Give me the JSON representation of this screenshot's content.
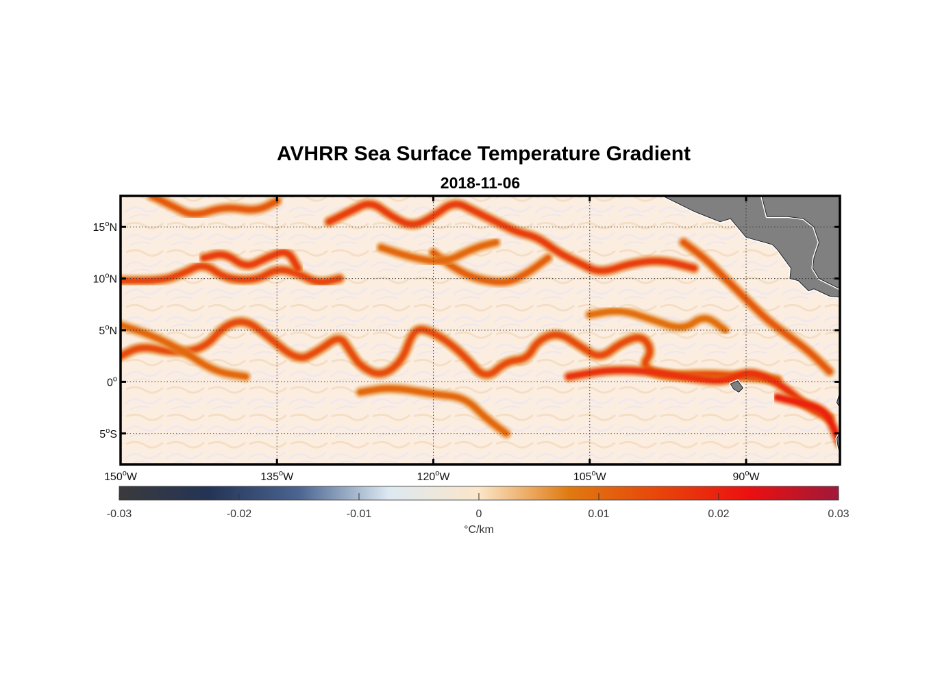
{
  "map": {
    "title": "AVHRR Sea Surface Temperature Gradient",
    "subtitle": "2018-11-06",
    "lon_range": [
      -150,
      -81
    ],
    "lat_range": [
      -8,
      18
    ],
    "lon_ticks": [
      {
        "value": -150,
        "deg": "150",
        "hem": "W"
      },
      {
        "value": -135,
        "deg": "135",
        "hem": "W"
      },
      {
        "value": -120,
        "deg": "120",
        "hem": "W"
      },
      {
        "value": -105,
        "deg": "105",
        "hem": "W"
      },
      {
        "value": -90,
        "deg": "90",
        "hem": "W"
      }
    ],
    "lat_ticks": [
      {
        "value": 15,
        "deg": "15",
        "hem": "N"
      },
      {
        "value": 10,
        "deg": "10",
        "hem": "N"
      },
      {
        "value": 5,
        "deg": "5",
        "hem": "N"
      },
      {
        "value": 0,
        "deg": "0",
        "hem": ""
      },
      {
        "value": -5,
        "deg": "5",
        "hem": "S"
      }
    ],
    "grid": true,
    "land_color": "#808080",
    "ocean_background": "#fbeee0"
  },
  "colorbar": {
    "min": -0.03,
    "max": 0.03,
    "tick_labels": [
      "-0.03",
      "-0.02",
      "-0.01",
      "0",
      "0.01",
      "0.02",
      "0.03"
    ],
    "tick_values": [
      -0.03,
      -0.02,
      -0.01,
      0,
      0.01,
      0.02,
      0.03
    ],
    "unit_label": "°C/km",
    "colors": [
      "#3a3a3c",
      "#243456",
      "#4a6590",
      "#dde9f2",
      "#fbe6c9",
      "#e07a10",
      "#e8450a",
      "#ec1010",
      "#a0183a"
    ]
  },
  "fronts": [
    {
      "name": "equatorial-front",
      "value": 0.014,
      "points": [
        [
          -150,
          2.5
        ],
        [
          -148,
          3.5
        ],
        [
          -145,
          2.8
        ],
        [
          -142,
          3.2
        ],
        [
          -140,
          5.5
        ],
        [
          -138,
          6.0
        ],
        [
          -136,
          4.5
        ],
        [
          -133,
          2.0
        ],
        [
          -131,
          3.0
        ],
        [
          -129,
          4.5
        ],
        [
          -128,
          3.0
        ],
        [
          -127,
          1.5
        ],
        [
          -125,
          0.5
        ],
        [
          -123,
          2.0
        ],
        [
          -122,
          4.8
        ],
        [
          -121,
          5.2
        ],
        [
          -119,
          4.2
        ],
        [
          -117,
          2.5
        ],
        [
          -115,
          0.2
        ],
        [
          -113,
          2.0
        ],
        [
          -111,
          2.2
        ],
        [
          -110,
          4.0
        ],
        [
          -108,
          4.8
        ],
        [
          -106,
          3.5
        ],
        [
          -104,
          2.2
        ],
        [
          -102,
          3.8
        ],
        [
          -100,
          4.5
        ],
        [
          -99,
          3.0
        ],
        [
          -100,
          1.5
        ],
        [
          -98,
          0.5
        ],
        [
          -94,
          0.8
        ],
        [
          -90,
          0.5
        ],
        [
          -87,
          0.2
        ]
      ]
    },
    {
      "name": "equator-east-front",
      "value": 0.018,
      "points": [
        [
          -107,
          0.5
        ],
        [
          -103,
          1.2
        ],
        [
          -99,
          1.0
        ],
        [
          -95,
          0.3
        ],
        [
          -92,
          0.0
        ],
        [
          -90,
          1.0
        ],
        [
          -88,
          0.5
        ],
        [
          -86,
          -0.8
        ],
        [
          -84,
          -2.5
        ],
        [
          -82,
          -3.5
        ]
      ]
    },
    {
      "name": "itcz-front",
      "value": 0.015,
      "points": [
        [
          -150,
          9.8
        ],
        [
          -146,
          9.8
        ],
        [
          -144,
          10.5
        ],
        [
          -142,
          11.5
        ],
        [
          -140,
          10.0
        ],
        [
          -137,
          9.8
        ],
        [
          -135,
          11.0
        ],
        [
          -133,
          10.5
        ],
        [
          -131,
          9.5
        ],
        [
          -129,
          10.0
        ]
      ]
    },
    {
      "name": "north-front-1",
      "value": 0.016,
      "points": [
        [
          -130,
          15.5
        ],
        [
          -128,
          16.5
        ],
        [
          -126,
          17.5
        ],
        [
          -124,
          16.0
        ],
        [
          -122,
          15.0
        ],
        [
          -120,
          16.0
        ],
        [
          -118,
          17.5
        ],
        [
          -116,
          16.5
        ],
        [
          -114,
          15.5
        ],
        [
          -112,
          14.5
        ],
        [
          -110,
          14.0
        ],
        [
          -108,
          12.5
        ],
        [
          -106,
          11.5
        ],
        [
          -104,
          10.5
        ],
        [
          -101,
          11.5
        ],
        [
          -98,
          11.8
        ],
        [
          -95,
          11.0
        ]
      ]
    },
    {
      "name": "north-front-2",
      "value": 0.016,
      "points": [
        [
          -142,
          12.0
        ],
        [
          -140,
          12.5
        ],
        [
          -138,
          11.0
        ],
        [
          -136,
          12.0
        ],
        [
          -134,
          12.8
        ],
        [
          -133,
          11.0
        ]
      ]
    },
    {
      "name": "north-front-3",
      "value": 0.012,
      "points": [
        [
          -147,
          18.0
        ],
        [
          -145,
          17.0
        ],
        [
          -143,
          16.0
        ],
        [
          -140,
          17.0
        ],
        [
          -137,
          16.5
        ],
        [
          -135,
          17.5
        ]
      ]
    },
    {
      "name": "south-front",
      "value": 0.01,
      "points": [
        [
          -127,
          -1.0
        ],
        [
          -124,
          -0.5
        ],
        [
          -120,
          -1.2
        ],
        [
          -117,
          -1.5
        ],
        [
          -115,
          -3.5
        ],
        [
          -113,
          -5.0
        ]
      ]
    },
    {
      "name": "central-front",
      "value": 0.011,
      "points": [
        [
          -120,
          12.5
        ],
        [
          -118,
          11.0
        ],
        [
          -116,
          10.0
        ],
        [
          -113,
          9.5
        ],
        [
          -111,
          10.5
        ],
        [
          -109,
          12.0
        ]
      ]
    },
    {
      "name": "east-north-front",
      "value": 0.012,
      "points": [
        [
          -96,
          13.5
        ],
        [
          -94,
          12.0
        ],
        [
          -92,
          10.0
        ],
        [
          -90,
          8.0
        ],
        [
          -88,
          6.0
        ],
        [
          -86,
          4.5
        ],
        [
          -84,
          3.0
        ],
        [
          -82,
          1.0
        ]
      ]
    },
    {
      "name": "se-front",
      "value": 0.02,
      "points": [
        [
          -87,
          -1.5
        ],
        [
          -85,
          -2.0
        ],
        [
          -83,
          -2.5
        ],
        [
          -82,
          -3.5
        ],
        [
          -81,
          -6.0
        ]
      ]
    },
    {
      "name": "west-mid-front",
      "value": 0.01,
      "points": [
        [
          -150,
          5.5
        ],
        [
          -147,
          4.5
        ],
        [
          -144,
          3.0
        ],
        [
          -141,
          1.0
        ],
        [
          -138,
          0.5
        ]
      ]
    },
    {
      "name": "mid-north-front",
      "value": 0.01,
      "points": [
        [
          -125,
          13.0
        ],
        [
          -122,
          12.0
        ],
        [
          -119,
          11.5
        ],
        [
          -116,
          13.0
        ],
        [
          -114,
          13.5
        ]
      ]
    },
    {
      "name": "lat7-front",
      "value": 0.009,
      "points": [
        [
          -105,
          6.5
        ],
        [
          -102,
          7.0
        ],
        [
          -99,
          6.0
        ],
        [
          -96,
          5.0
        ],
        [
          -94,
          6.5
        ],
        [
          -92,
          5.0
        ]
      ]
    }
  ],
  "land": [
    {
      "name": "central-america",
      "points": [
        [
          -98,
          18
        ],
        [
          -95,
          16.5
        ],
        [
          -92.5,
          15.5
        ],
        [
          -91.5,
          15.8
        ],
        [
          -90,
          14.0
        ],
        [
          -87.5,
          13.3
        ],
        [
          -87,
          12.8
        ],
        [
          -85.7,
          11.0
        ],
        [
          -85.8,
          10.0
        ],
        [
          -85,
          9.8
        ],
        [
          -84,
          8.8
        ],
        [
          -83.5,
          9.0
        ],
        [
          -82,
          8.3
        ],
        [
          -81,
          8.2
        ],
        [
          -81,
          18
        ]
      ]
    },
    {
      "name": "gulf-of-mexico-notch",
      "points": [
        [
          -88.5,
          18
        ],
        [
          -88,
          16.0
        ],
        [
          -86,
          16.0
        ],
        [
          -84.5,
          15.8
        ],
        [
          -83.5,
          15.0
        ],
        [
          -83,
          13.5
        ],
        [
          -83.5,
          12.0
        ],
        [
          -83.6,
          11.0
        ],
        [
          -83,
          10.0
        ],
        [
          -81,
          9.0
        ],
        [
          -81,
          18
        ]
      ]
    },
    {
      "name": "ecuador-peru",
      "points": [
        [
          -81,
          2.0
        ],
        [
          -80.5,
          1.0
        ],
        [
          -81,
          0.0
        ],
        [
          -81,
          -8
        ],
        [
          -81,
          -2.5
        ],
        [
          -81.3,
          -2.0
        ],
        [
          -81,
          -1.0
        ]
      ]
    },
    {
      "name": "peru-coast",
      "points": [
        [
          -81,
          -3.8
        ],
        [
          -80.8,
          -4.5
        ],
        [
          -81.3,
          -5.5
        ],
        [
          -81.2,
          -6.2
        ],
        [
          -81,
          -7.0
        ],
        [
          -81,
          -3.8
        ]
      ]
    },
    {
      "name": "galapagos",
      "points": [
        [
          -91.5,
          -0.2
        ],
        [
          -90.8,
          0.1
        ],
        [
          -90.3,
          -0.6
        ],
        [
          -90.7,
          -1.0
        ],
        [
          -91.2,
          -0.7
        ]
      ]
    }
  ]
}
